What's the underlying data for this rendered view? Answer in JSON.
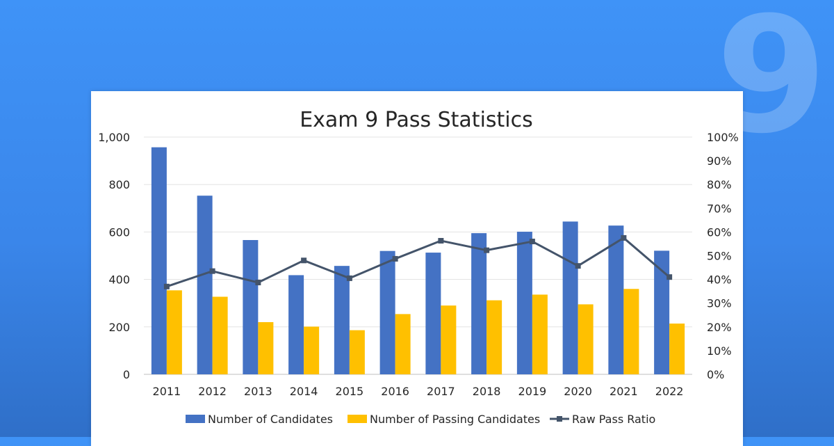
{
  "background": {
    "number": "9",
    "color_top": "#3f93f7",
    "color_bottom": "#2f6fc8"
  },
  "chart_data": {
    "type": "bar",
    "title": "Exam 9 Pass Statistics",
    "categories": [
      "2011",
      "2012",
      "2013",
      "2014",
      "2015",
      "2016",
      "2017",
      "2018",
      "2019",
      "2020",
      "2021",
      "2022"
    ],
    "series": [
      {
        "name": "Number of Candidates",
        "type": "bar",
        "axis": "left",
        "color": "#4472c4",
        "values": [
          957,
          753,
          566,
          418,
          457,
          520,
          513,
          595,
          601,
          644,
          627,
          521
        ]
      },
      {
        "name": "Number of Passing Candidates",
        "type": "bar",
        "axis": "left",
        "color": "#ffc000",
        "values": [
          354,
          327,
          220,
          201,
          186,
          254,
          290,
          312,
          336,
          295,
          360,
          214
        ]
      },
      {
        "name": "Raw Pass Ratio",
        "type": "line",
        "axis": "right",
        "color": "#44546a",
        "marker": "square",
        "values": [
          0.37,
          0.435,
          0.387,
          0.48,
          0.405,
          0.487,
          0.563,
          0.523,
          0.56,
          0.457,
          0.575,
          0.41
        ]
      }
    ],
    "y_left": {
      "min": 0,
      "max": 1000,
      "ticks": [
        0,
        200,
        400,
        600,
        800,
        1000
      ],
      "tick_labels": [
        "0",
        "200",
        "400",
        "600",
        "800",
        "1,000"
      ]
    },
    "y_right": {
      "min": 0,
      "max": 1,
      "ticks": [
        0,
        0.1,
        0.2,
        0.3,
        0.4,
        0.5,
        0.6,
        0.7,
        0.8,
        0.9,
        1.0
      ],
      "tick_labels": [
        "0%",
        "10%",
        "20%",
        "30%",
        "40%",
        "50%",
        "60%",
        "70%",
        "80%",
        "90%",
        "100%"
      ]
    },
    "grid": true,
    "legend_position": "bottom"
  }
}
